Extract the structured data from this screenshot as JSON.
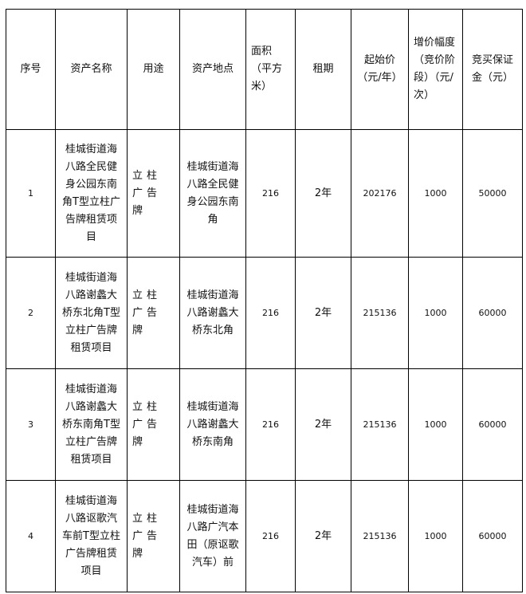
{
  "headers": [
    "序号",
    "资产名称",
    "用途",
    "资产地点",
    "面积（平方米）",
    "租期",
    "起始价（元/年）",
    "增价幅度（竞价阶段）（元/次）",
    "竞买保证金（元）"
  ],
  "rows": [
    {
      "no": "1",
      "name": "桂城街道海八路全民健身公园东南角T型立柱广告牌租赁项目",
      "use": "立柱广告牌",
      "location": "桂城街道海八路全民健身公园东南角",
      "area": "216",
      "term": "2年",
      "start_price": "202176",
      "increment": "1000",
      "deposit": "50000"
    },
    {
      "no": "2",
      "name": "桂城街道海八路谢蠡大桥东北角T型立柱广告牌租赁项目",
      "use": "立柱广告牌",
      "location": "桂城街道海八路谢蠡大桥东北角",
      "area": "216",
      "term": "2年",
      "start_price": "215136",
      "increment": "1000",
      "deposit": "60000"
    },
    {
      "no": "3",
      "name": "桂城街道海八路谢蠡大桥东南角T型立柱广告牌租赁项目",
      "use": "立柱广告牌",
      "location": "桂城街道海八路谢蠡大桥东南角",
      "area": "216",
      "term": "2年",
      "start_price": "215136",
      "increment": "1000",
      "deposit": "60000"
    },
    {
      "no": "4",
      "name": "桂城街道海八路讴歌汽车前T型立柱广告牌租赁项目",
      "use": "立柱广告牌",
      "location": "桂城街道海八路广汽本田（原讴歌汽车）前",
      "area": "216",
      "term": "2年",
      "start_price": "215136",
      "increment": "1000",
      "deposit": "60000"
    }
  ]
}
